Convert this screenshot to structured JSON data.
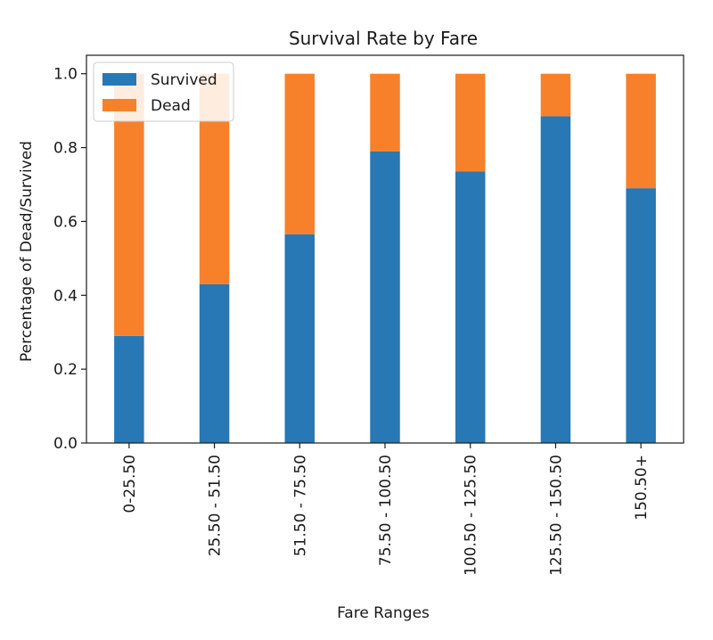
{
  "chart_data": {
    "type": "bar",
    "stacked": true,
    "title": "Survival Rate by Fare",
    "xlabel": "Fare Ranges",
    "ylabel": "Percentage of Dead/Survived",
    "categories": [
      "0-25.50",
      "25.50 - 51.50",
      "51.50 - 75.50",
      "75.50 - 100.50",
      "100.50 - 125.50",
      "125.50 - 150.50",
      "150.50+"
    ],
    "series": [
      {
        "name": "Survived",
        "color": "#2878b5",
        "values": [
          0.29,
          0.43,
          0.565,
          0.79,
          0.735,
          0.885,
          0.69
        ]
      },
      {
        "name": "Dead",
        "color": "#f7812b",
        "values": [
          0.71,
          0.57,
          0.435,
          0.21,
          0.265,
          0.115,
          0.31
        ]
      }
    ],
    "ylim": [
      0,
      1.05
    ],
    "yticks": [
      "0.0",
      "0.2",
      "0.4",
      "0.6",
      "0.8",
      "1.0"
    ],
    "legend_position": "top-left",
    "grid": false
  }
}
